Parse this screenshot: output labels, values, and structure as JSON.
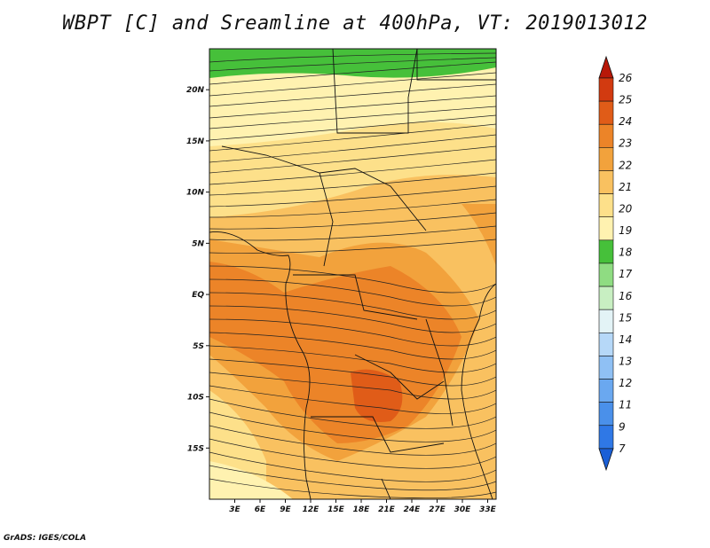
{
  "title": "WBPT [C] and Sreamline at 400hPa, VT: 2019013012",
  "credit": "GrADS: IGES/COLA",
  "map": {
    "lon_labels": [
      "3E",
      "6E",
      "9E",
      "12E",
      "15E",
      "18E",
      "21E",
      "24E",
      "27E",
      "30E",
      "33E"
    ],
    "lat_labels": [
      "20N",
      "15N",
      "10N",
      "5N",
      "EQ",
      "5S",
      "10S",
      "15S"
    ],
    "lon_range": [
      0,
      34
    ],
    "lat_range": [
      -20,
      24
    ]
  },
  "colorbar": {
    "labels": [
      "7",
      "9",
      "11",
      "12",
      "13",
      "14",
      "15",
      "16",
      "17",
      "18",
      "19",
      "20",
      "21",
      "22",
      "23",
      "24",
      "25",
      "26"
    ],
    "colors": [
      "#1a5fd6",
      "#2f78e6",
      "#4a90ea",
      "#6aa8f0",
      "#8fc0f4",
      "#b6d8f8",
      "#e3f3f6",
      "#c8efc2",
      "#8fdc82",
      "#46c03a",
      "#fff2b0",
      "#fde08a",
      "#f9c160",
      "#f2a23c",
      "#ec8428",
      "#e05c18",
      "#d23a10",
      "#b81808"
    ]
  },
  "chart_data": {
    "type": "heatmap",
    "title": "WBPT [C] and Sreamline at 400hPa, VT: 2019013012",
    "variable": "WBPT [C]",
    "level": "400hPa",
    "valid_time": "2019013012",
    "color_levels": [
      7,
      9,
      11,
      12,
      13,
      14,
      15,
      16,
      17,
      18,
      19,
      20,
      21,
      22,
      23,
      24,
      25,
      26
    ],
    "lon_ticks": [
      "3E",
      "6E",
      "9E",
      "12E",
      "15E",
      "18E",
      "21E",
      "24E",
      "27E",
      "30E",
      "33E"
    ],
    "lat_ticks": [
      "20N",
      "15N",
      "10N",
      "5N",
      "EQ",
      "5S",
      "10S",
      "15S"
    ]
  }
}
